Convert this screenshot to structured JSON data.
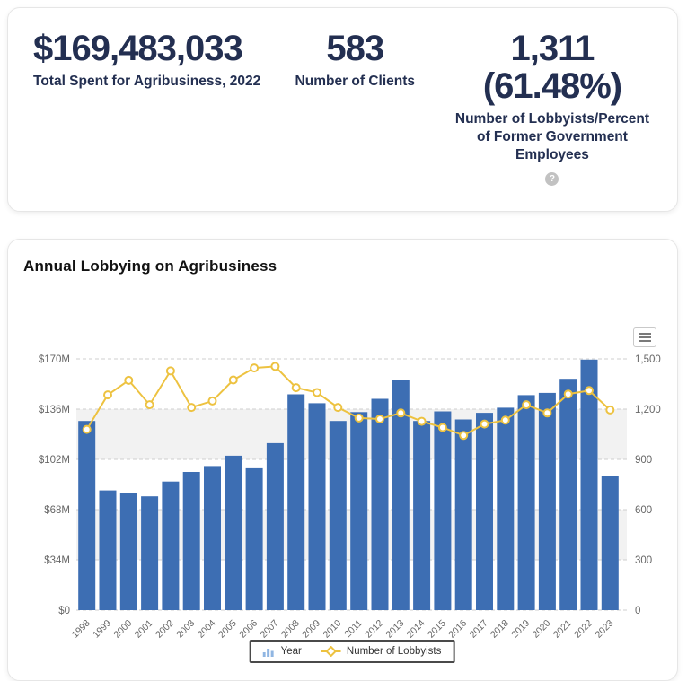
{
  "stats_card": {
    "stats": [
      {
        "value": "$169,483,033",
        "label": "Total Spent for Agribusiness, 2022"
      },
      {
        "value": "583",
        "label": "Number of Clients"
      },
      {
        "value": "1,311",
        "value2": "(61.48%)",
        "label": "Number of Lobbyists/Percent of Former Government Employees",
        "help_icon": "?"
      }
    ]
  },
  "chart_card": {
    "title": "Annual Lobbying on Agribusiness",
    "export_menu_icon": "hamburger-menu"
  },
  "chart_data": {
    "type": "bar",
    "title": "Annual Lobbying on Agribusiness",
    "categories": [
      "1998",
      "1999",
      "2000",
      "2001",
      "2002",
      "2003",
      "2004",
      "2005",
      "2006",
      "2007",
      "2008",
      "2009",
      "2010",
      "2011",
      "2012",
      "2013",
      "2014",
      "2015",
      "2016",
      "2017",
      "2018",
      "2019",
      "2020",
      "2021",
      "2022",
      "2023"
    ],
    "series": [
      {
        "name": "Year",
        "type": "bar",
        "axis": "left",
        "color": "#3d6eb3",
        "units": "USD millions",
        "values": [
          128,
          81,
          79,
          77,
          87,
          93.5,
          97.5,
          104.5,
          96,
          113,
          146,
          140,
          128,
          134,
          143,
          155.5,
          128,
          134.5,
          129,
          133.5,
          137,
          145.5,
          147,
          156.5,
          169.5,
          90.5
        ]
      },
      {
        "name": "Number of Lobbyists",
        "type": "line",
        "axis": "right",
        "color": "#edc240",
        "marker_fill": "#ffffff",
        "values": [
          1079,
          1285,
          1372,
          1226,
          1428,
          1210,
          1249,
          1374,
          1446,
          1455,
          1328,
          1299,
          1210,
          1147,
          1141,
          1177,
          1127,
          1090,
          1043,
          1111,
          1134,
          1226,
          1177,
          1290,
          1311,
          1195
        ]
      }
    ],
    "left_axis": {
      "tick_labels": [
        "$0",
        "$34M",
        "$68M",
        "$102M",
        "$136M",
        "$170M"
      ],
      "tick_values": [
        0,
        34,
        68,
        102,
        136,
        170
      ],
      "max": 170
    },
    "right_axis": {
      "tick_labels": [
        "0",
        "300",
        "600",
        "900",
        "1,200",
        "1,500"
      ],
      "tick_values": [
        0,
        300,
        600,
        900,
        1200,
        1500
      ],
      "max": 1500
    },
    "gray_bands_left_units": [
      [
        34,
        68
      ],
      [
        102,
        136
      ]
    ],
    "band_color": "#f2f2f2",
    "grid": "dashed",
    "grid_color": "#cfcfcf",
    "axis_text_color": "#666666",
    "legend_position": "bottom",
    "legend": [
      {
        "label": "Year",
        "icon": "bar-chart-icon"
      },
      {
        "label": "Number of Lobbyists",
        "icon": "line-marker-icon"
      }
    ]
  }
}
